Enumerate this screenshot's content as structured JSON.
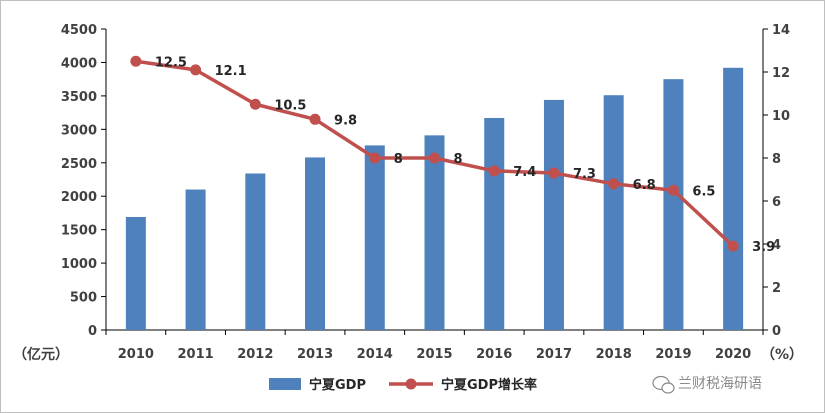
{
  "chart_data": {
    "type": "bar+line",
    "categories": [
      "2010",
      "2011",
      "2012",
      "2013",
      "2014",
      "2015",
      "2016",
      "2017",
      "2018",
      "2019",
      "2020"
    ],
    "series": [
      {
        "name": "宁夏GDP",
        "type": "bar",
        "axis": "left",
        "color": "#4f81bd",
        "values": [
          1690,
          2100,
          2340,
          2580,
          2760,
          2910,
          3170,
          3440,
          3510,
          3750,
          3920
        ]
      },
      {
        "name": "宁夏GDP增长率",
        "type": "line",
        "axis": "right",
        "color": "#c0504d",
        "values": [
          12.5,
          12.1,
          10.5,
          9.8,
          8,
          8,
          7.4,
          7.3,
          6.8,
          6.5,
          3.9
        ],
        "labels": [
          "12.5",
          "12.1",
          "10.5",
          "9.8",
          "8",
          "8",
          "7.4",
          "7.3",
          "6.8",
          "6.5",
          "3.9"
        ]
      }
    ],
    "y_left": {
      "unit": "（亿元）",
      "range": [
        0,
        4500
      ],
      "ticks": [
        "0",
        "500",
        "1000",
        "1500",
        "2000",
        "2500",
        "3000",
        "3500",
        "4000",
        "4500"
      ]
    },
    "y_right": {
      "unit": "（%）",
      "range": [
        0,
        14
      ],
      "ticks": [
        "0",
        "2",
        "4",
        "6",
        "8",
        "10",
        "12",
        "14"
      ]
    },
    "grid": false,
    "legend": "bottom-center"
  },
  "watermark": {
    "text": "兰财税海研语"
  }
}
